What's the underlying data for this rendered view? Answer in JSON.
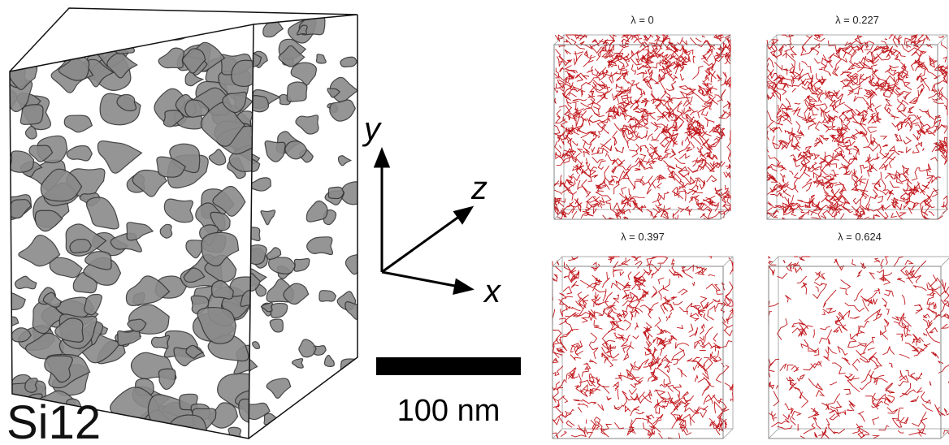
{
  "figure": {
    "left_label": "Si12",
    "axes": {
      "y": "y",
      "z": "z",
      "x": "x"
    },
    "scale_bar": "100 nm",
    "panels": [
      {
        "label": "λ = 0"
      },
      {
        "label": "λ = 0.227"
      },
      {
        "label": "λ = 0.397"
      },
      {
        "label": "λ = 0.624"
      }
    ]
  }
}
